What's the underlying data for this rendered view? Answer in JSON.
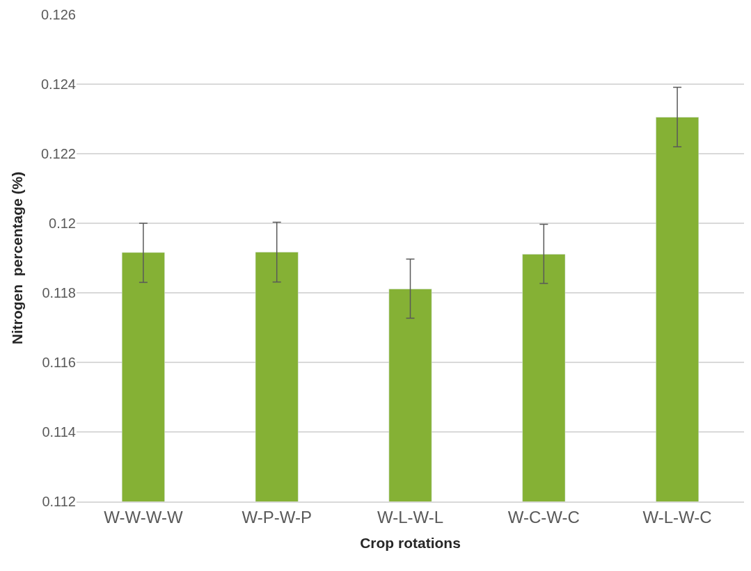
{
  "chart_data": {
    "type": "bar",
    "xlabel": "Crop rotations",
    "ylabel": "Nitrogen  percentage (%)",
    "categories": [
      "W-W-W-W",
      "W-P-W-P",
      "W-L-W-L",
      "W-C-W-C",
      "W-L-W-C"
    ],
    "series": [
      {
        "color": "#85b135",
        "values": [
          0.11916,
          0.11917,
          0.11811,
          0.11911,
          0.12305
        ],
        "errors": [
          [
            0.1183,
            0.12
          ],
          [
            0.11831,
            0.12003
          ],
          [
            0.11727,
            0.11897
          ],
          [
            0.11827,
            0.11997
          ],
          [
            0.1222,
            0.12391
          ]
        ]
      }
    ],
    "ylim": [
      0.112,
      0.126
    ],
    "yticks": [
      0.112,
      0.114,
      0.116,
      0.118,
      0.12,
      0.122,
      0.124,
      0.126
    ],
    "grid": "y",
    "legend": false
  }
}
